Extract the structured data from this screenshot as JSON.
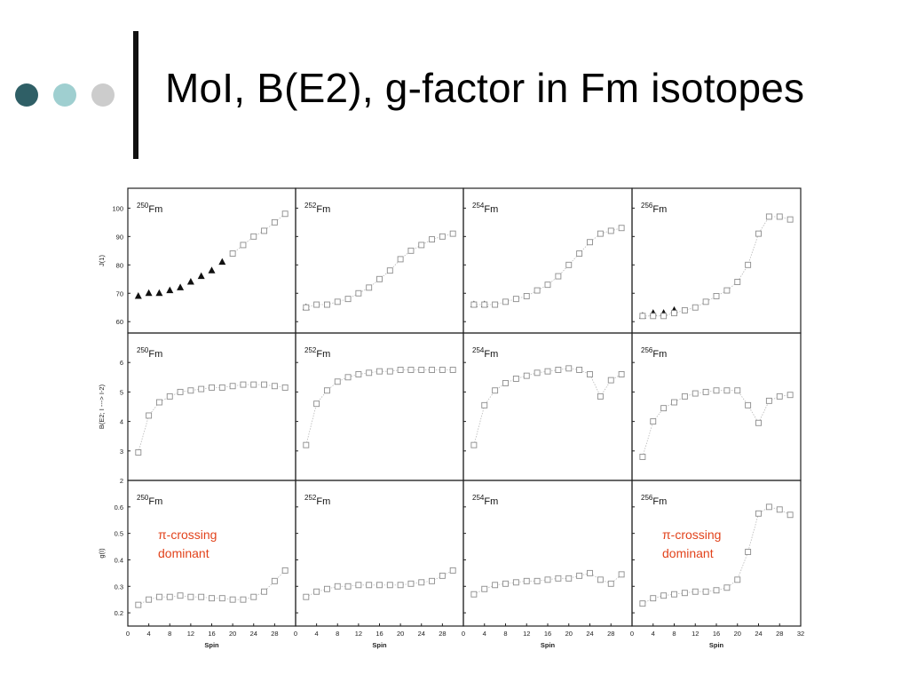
{
  "slide": {
    "title": "MoI, B(E2), g-factor in Fm isotopes",
    "bullet_colors": [
      "#2f5f66",
      "#9fcfd0",
      "#cccccc"
    ]
  },
  "chart_data": [
    {
      "type": "scatter",
      "panel": "250Fm-moi",
      "isotope_mass": "250",
      "isotope_symbol": "Fm",
      "ylabel": "J(1)",
      "xlabel": "",
      "xlim": [
        0,
        32
      ],
      "ylim": [
        56,
        107
      ],
      "yticks": [
        60,
        70,
        80,
        90,
        100
      ],
      "series": [
        {
          "marker": "filled-triangle",
          "x": [
            2,
            4,
            6,
            8,
            10,
            12,
            14,
            16,
            18
          ],
          "y": [
            69,
            70,
            70,
            71,
            72,
            74,
            76,
            78,
            81
          ]
        },
        {
          "marker": "open-square",
          "x": [
            20,
            22,
            24,
            26,
            28,
            30
          ],
          "y": [
            84,
            87,
            90,
            92,
            95,
            98
          ]
        }
      ]
    },
    {
      "type": "scatter",
      "panel": "252Fm-moi",
      "isotope_mass": "252",
      "isotope_symbol": "Fm",
      "xlim": [
        0,
        32
      ],
      "ylim": [
        56,
        107
      ],
      "yticks": [
        60,
        70,
        80,
        90,
        100
      ],
      "series": [
        {
          "marker": "filled-triangle",
          "x": [
            2
          ],
          "y": [
            65
          ]
        },
        {
          "marker": "open-square",
          "x": [
            2,
            4,
            6,
            8,
            10,
            12,
            14,
            16,
            18,
            20,
            22,
            24,
            26,
            28,
            30
          ],
          "y": [
            65,
            66,
            66,
            67,
            68,
            70,
            72,
            75,
            78,
            82,
            85,
            87,
            89,
            90,
            91
          ]
        }
      ]
    },
    {
      "type": "scatter",
      "panel": "254Fm-moi",
      "isotope_mass": "254",
      "isotope_symbol": "Fm",
      "xlim": [
        0,
        32
      ],
      "ylim": [
        56,
        107
      ],
      "yticks": [
        60,
        70,
        80,
        90,
        100
      ],
      "series": [
        {
          "marker": "filled-triangle",
          "x": [
            2,
            4
          ],
          "y": [
            66,
            66
          ]
        },
        {
          "marker": "open-square",
          "x": [
            2,
            4,
            6,
            8,
            10,
            12,
            14,
            16,
            18,
            20,
            22,
            24,
            26,
            28,
            30
          ],
          "y": [
            66,
            66,
            66,
            67,
            68,
            69,
            71,
            73,
            76,
            80,
            84,
            88,
            91,
            92,
            93
          ]
        }
      ]
    },
    {
      "type": "scatter",
      "panel": "256Fm-moi",
      "isotope_mass": "256",
      "isotope_symbol": "Fm",
      "xlim": [
        0,
        32
      ],
      "ylim": [
        56,
        107
      ],
      "yticks": [
        60,
        70,
        80,
        90,
        100
      ],
      "series": [
        {
          "marker": "filled-triangle",
          "x": [
            2,
            4,
            6,
            8
          ],
          "y": [
            62,
            63,
            63,
            64
          ]
        },
        {
          "marker": "open-square",
          "x": [
            2,
            4,
            6,
            8,
            10,
            12,
            14,
            16,
            18,
            20,
            22,
            24,
            26,
            28,
            30
          ],
          "y": [
            62,
            62,
            62,
            63,
            64,
            65,
            67,
            69,
            71,
            74,
            80,
            91,
            97,
            97,
            96
          ]
        }
      ]
    },
    {
      "type": "line",
      "panel": "250Fm-be2",
      "isotope_mass": "250",
      "isotope_symbol": "Fm",
      "ylabel": "B(E2; I ---> I-2)",
      "xlim": [
        0,
        32
      ],
      "ylim": [
        2,
        7
      ],
      "yticks": [
        2,
        3,
        4,
        5,
        6
      ],
      "series": [
        {
          "marker": "open-square",
          "x": [
            2,
            4,
            6,
            8,
            10,
            12,
            14,
            16,
            18,
            20,
            22,
            24,
            26,
            28,
            30
          ],
          "y": [
            2.95,
            4.2,
            4.65,
            4.85,
            5.0,
            5.05,
            5.1,
            5.15,
            5.15,
            5.2,
            5.25,
            5.25,
            5.25,
            5.2,
            5.15
          ]
        }
      ]
    },
    {
      "type": "line",
      "panel": "252Fm-be2",
      "isotope_mass": "252",
      "isotope_symbol": "Fm",
      "xlim": [
        0,
        32
      ],
      "ylim": [
        2,
        7
      ],
      "yticks": [
        2,
        3,
        4,
        5,
        6
      ],
      "series": [
        {
          "marker": "open-square",
          "x": [
            2,
            4,
            6,
            8,
            10,
            12,
            14,
            16,
            18,
            20,
            22,
            24,
            26,
            28,
            30
          ],
          "y": [
            3.2,
            4.6,
            5.05,
            5.35,
            5.5,
            5.6,
            5.65,
            5.7,
            5.7,
            5.75,
            5.75,
            5.75,
            5.75,
            5.75,
            5.75
          ]
        }
      ]
    },
    {
      "type": "line",
      "panel": "254Fm-be2",
      "isotope_mass": "254",
      "isotope_symbol": "Fm",
      "xlim": [
        0,
        32
      ],
      "ylim": [
        2,
        7
      ],
      "yticks": [
        2,
        3,
        4,
        5,
        6
      ],
      "series": [
        {
          "marker": "open-square",
          "x": [
            2,
            4,
            6,
            8,
            10,
            12,
            14,
            16,
            18,
            20,
            22,
            24,
            26,
            28,
            30
          ],
          "y": [
            3.2,
            4.55,
            5.05,
            5.3,
            5.45,
            5.55,
            5.65,
            5.7,
            5.75,
            5.8,
            5.75,
            5.6,
            4.85,
            5.4,
            5.6
          ]
        }
      ]
    },
    {
      "type": "line",
      "panel": "256Fm-be2",
      "isotope_mass": "256",
      "isotope_symbol": "Fm",
      "xlim": [
        0,
        32
      ],
      "ylim": [
        2,
        7
      ],
      "yticks": [
        2,
        3,
        4,
        5,
        6
      ],
      "series": [
        {
          "marker": "open-square",
          "x": [
            2,
            4,
            6,
            8,
            10,
            12,
            14,
            16,
            18,
            20,
            22,
            24,
            26,
            28,
            30
          ],
          "y": [
            2.8,
            4.0,
            4.45,
            4.65,
            4.85,
            4.95,
            5.0,
            5.05,
            5.05,
            5.05,
            4.55,
            3.95,
            4.7,
            4.85,
            4.9
          ]
        }
      ]
    },
    {
      "type": "line",
      "panel": "250Fm-g",
      "isotope_mass": "250",
      "isotope_symbol": "Fm",
      "ylabel": "g(I)",
      "xlabel": "Spin",
      "xlim": [
        0,
        32
      ],
      "ylim": [
        0.15,
        0.7
      ],
      "yticks": [
        0.2,
        0.3,
        0.4,
        0.5,
        0.6
      ],
      "xticks": [
        0,
        4,
        8,
        12,
        16,
        20,
        24,
        28,
        32
      ],
      "annotation": [
        "π-crossing",
        "dominant"
      ],
      "series": [
        {
          "marker": "open-square",
          "x": [
            2,
            4,
            6,
            8,
            10,
            12,
            14,
            16,
            18,
            20,
            22,
            24,
            26,
            28,
            30
          ],
          "y": [
            0.23,
            0.25,
            0.26,
            0.26,
            0.265,
            0.26,
            0.26,
            0.255,
            0.255,
            0.25,
            0.25,
            0.26,
            0.28,
            0.32,
            0.36
          ]
        }
      ]
    },
    {
      "type": "line",
      "panel": "252Fm-g",
      "isotope_mass": "252",
      "isotope_symbol": "Fm",
      "xlabel": "Spin",
      "xlim": [
        0,
        32
      ],
      "ylim": [
        0.15,
        0.7
      ],
      "yticks": [
        0.2,
        0.3,
        0.4,
        0.5,
        0.6
      ],
      "xticks": [
        0,
        4,
        8,
        12,
        16,
        20,
        24,
        28,
        32
      ],
      "series": [
        {
          "marker": "open-square",
          "x": [
            2,
            4,
            6,
            8,
            10,
            12,
            14,
            16,
            18,
            20,
            22,
            24,
            26,
            28,
            30
          ],
          "y": [
            0.26,
            0.28,
            0.29,
            0.3,
            0.3,
            0.305,
            0.305,
            0.305,
            0.305,
            0.305,
            0.31,
            0.315,
            0.32,
            0.34,
            0.36
          ]
        }
      ]
    },
    {
      "type": "line",
      "panel": "254Fm-g",
      "isotope_mass": "254",
      "isotope_symbol": "Fm",
      "xlabel": "Spin",
      "xlim": [
        0,
        32
      ],
      "ylim": [
        0.15,
        0.7
      ],
      "yticks": [
        0.2,
        0.3,
        0.4,
        0.5,
        0.6
      ],
      "xticks": [
        0,
        4,
        8,
        12,
        16,
        20,
        24,
        28,
        32
      ],
      "series": [
        {
          "marker": "open-square",
          "x": [
            2,
            4,
            6,
            8,
            10,
            12,
            14,
            16,
            18,
            20,
            22,
            24,
            26,
            28,
            30
          ],
          "y": [
            0.27,
            0.29,
            0.305,
            0.31,
            0.315,
            0.32,
            0.32,
            0.325,
            0.33,
            0.33,
            0.34,
            0.35,
            0.325,
            0.31,
            0.345
          ]
        }
      ]
    },
    {
      "type": "line",
      "panel": "256Fm-g",
      "isotope_mass": "256",
      "isotope_symbol": "Fm",
      "xlabel": "Spin",
      "xlim": [
        0,
        32
      ],
      "ylim": [
        0.15,
        0.7
      ],
      "yticks": [
        0.2,
        0.3,
        0.4,
        0.5,
        0.6
      ],
      "xticks": [
        0,
        4,
        8,
        12,
        16,
        20,
        24,
        28,
        32
      ],
      "annotation": [
        "π-crossing",
        "dominant"
      ],
      "series": [
        {
          "marker": "open-square",
          "x": [
            2,
            4,
            6,
            8,
            10,
            12,
            14,
            16,
            18,
            20,
            22,
            24,
            26,
            28,
            30
          ],
          "y": [
            0.235,
            0.255,
            0.265,
            0.27,
            0.275,
            0.28,
            0.28,
            0.285,
            0.295,
            0.325,
            0.43,
            0.575,
            0.6,
            0.59,
            0.57
          ]
        }
      ]
    }
  ],
  "annotation_color": "#e2431c"
}
